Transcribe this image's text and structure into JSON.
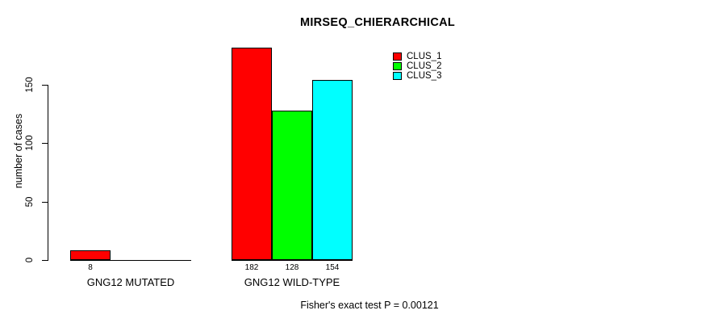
{
  "chart_data": {
    "type": "bar",
    "title": "MIRSEQ_CHIERARCHICAL",
    "ylabel": "number of cases",
    "xlabel": "",
    "ylim": [
      0,
      150
    ],
    "yticks": [
      0,
      50,
      100,
      150
    ],
    "categories": [
      "GNG12 MUTATED",
      "GNG12 WILD-TYPE"
    ],
    "series": [
      {
        "name": "CLUS_1",
        "color": "#FF0000",
        "values": [
          8,
          182
        ]
      },
      {
        "name": "CLUS_2",
        "color": "#00FF00",
        "values": [
          0,
          128
        ]
      },
      {
        "name": "CLUS_3",
        "color": "#00FFFF",
        "values": [
          0,
          154
        ]
      }
    ],
    "visible_bar_value_labels": [
      "8",
      "182",
      "128",
      "154"
    ],
    "annotation": "Fisher's exact test P = 0.00121",
    "legend_position": "top-right",
    "grid": false,
    "background_color": "#FFFFFF",
    "axis_color": "#000000"
  }
}
